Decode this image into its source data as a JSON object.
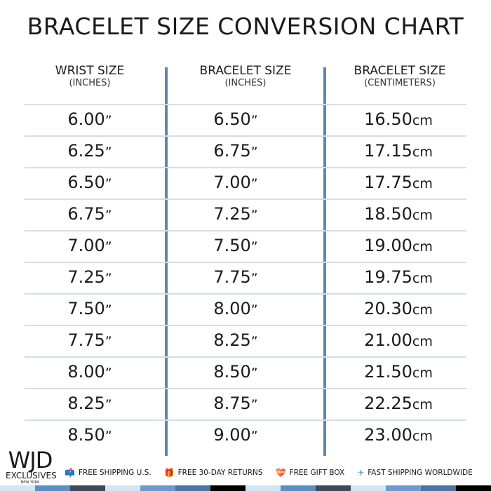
{
  "title": "BRACELET SIZE CONVERSION CHART",
  "columns": [
    {
      "label": "WRIST SIZE",
      "unit_label": "(INCHES)"
    },
    {
      "label": "BRACELET SIZE",
      "unit_label": "(INCHES)"
    },
    {
      "label": "BRACELET SIZE",
      "unit_label": "(CENTIMETERS)"
    }
  ],
  "rows": [
    [
      "6.00",
      "6.50",
      "16.50"
    ],
    [
      "6.25",
      "6.75",
      "17.15"
    ],
    [
      "6.50",
      "7.00",
      "17.75"
    ],
    [
      "6.75",
      "7.25",
      "18.50"
    ],
    [
      "7.00",
      "7.50",
      "19.00"
    ],
    [
      "7.25",
      "7.75",
      "19.75"
    ],
    [
      "7.50",
      "8.00",
      "20.30"
    ],
    [
      "7.75",
      "8.25",
      "21.00"
    ],
    [
      "8.00",
      "8.50",
      "21.50"
    ],
    [
      "8.25",
      "8.75",
      "22.25"
    ],
    [
      "8.50",
      "9.00",
      "23.00"
    ]
  ],
  "units": {
    "inch": "”",
    "cm": "cm"
  },
  "footer": {
    "logo": {
      "main": "WJD",
      "sub": "EXCLUSIVES",
      "city": "NEW YORK"
    },
    "perks": [
      {
        "icon": "mailbox-icon",
        "glyph": "📫",
        "label": "FREE SHIPPING U.S."
      },
      {
        "icon": "gift-icon",
        "glyph": "🎁",
        "label": "FREE 30-DAY RETURNS"
      },
      {
        "icon": "gift-heart-icon",
        "glyph": "💝",
        "label": "FREE GIFT BOX"
      },
      {
        "icon": "airplane-icon",
        "glyph": "✈",
        "label": "FAST SHIPPING WORLDWIDE"
      }
    ]
  },
  "colors": {
    "accent": "#5b86b5",
    "stripe": [
      "#cfe6f5",
      "#5b8fc7",
      "#3d4a5a",
      "#cfe6f5",
      "#6a9bd0",
      "#4a74a3",
      "#000000",
      "#cfe6f5",
      "#5b8fc7",
      "#3d4a5a",
      "#cfe6f5",
      "#6a9bd0",
      "#4a74a3",
      "#000000"
    ]
  }
}
